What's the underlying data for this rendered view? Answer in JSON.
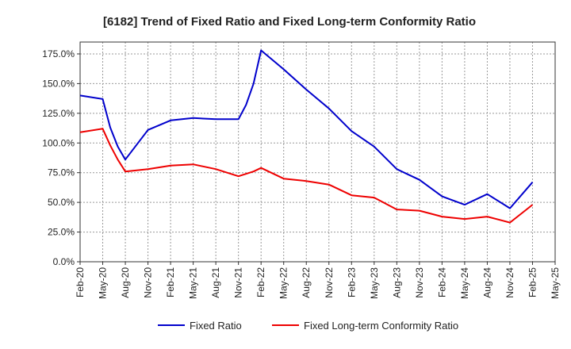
{
  "chart_data": {
    "type": "line",
    "title": "[6182]  Trend of Fixed Ratio and Fixed Long-term Conformity Ratio",
    "xlabel": "",
    "ylabel": "",
    "x_ticks": [
      "Feb-20",
      "May-20",
      "Aug-20",
      "Nov-20",
      "Feb-21",
      "May-21",
      "Aug-21",
      "Nov-21",
      "Feb-22",
      "May-22",
      "Aug-22",
      "Nov-22",
      "Feb-23",
      "May-23",
      "Aug-23",
      "Nov-23",
      "Feb-24",
      "May-24",
      "Aug-24",
      "Nov-24",
      "Feb-25",
      "May-25"
    ],
    "y_ticks": [
      "0.0%",
      "25.0%",
      "50.0%",
      "75.0%",
      "100.0%",
      "125.0%",
      "150.0%",
      "175.0%"
    ],
    "ylim": [
      0,
      185
    ],
    "grid": true,
    "legend_position": "bottom",
    "series": [
      {
        "name": "Fixed Ratio",
        "color": "#0000cc",
        "points": [
          {
            "x": "2020-02",
            "y": 140
          },
          {
            "x": "2020-05",
            "y": 137
          },
          {
            "x": "2020-06",
            "y": 113
          },
          {
            "x": "2020-07",
            "y": 97
          },
          {
            "x": "2020-08",
            "y": 86
          },
          {
            "x": "2020-11",
            "y": 111
          },
          {
            "x": "2021-02",
            "y": 119
          },
          {
            "x": "2021-05",
            "y": 121
          },
          {
            "x": "2021-08",
            "y": 120
          },
          {
            "x": "2021-11",
            "y": 120
          },
          {
            "x": "2021-12",
            "y": 132
          },
          {
            "x": "2022-01",
            "y": 150
          },
          {
            "x": "2022-02",
            "y": 178
          },
          {
            "x": "2022-05",
            "y": 162
          },
          {
            "x": "2022-08",
            "y": 145
          },
          {
            "x": "2022-11",
            "y": 129
          },
          {
            "x": "2023-02",
            "y": 110
          },
          {
            "x": "2023-05",
            "y": 97
          },
          {
            "x": "2023-08",
            "y": 78
          },
          {
            "x": "2023-11",
            "y": 69
          },
          {
            "x": "2024-02",
            "y": 55
          },
          {
            "x": "2024-05",
            "y": 48
          },
          {
            "x": "2024-08",
            "y": 57
          },
          {
            "x": "2024-11",
            "y": 45
          },
          {
            "x": "2025-02",
            "y": 67
          }
        ]
      },
      {
        "name": "Fixed Long-term Conformity Ratio",
        "color": "#ee0000",
        "points": [
          {
            "x": "2020-02",
            "y": 109
          },
          {
            "x": "2020-05",
            "y": 112
          },
          {
            "x": "2020-06",
            "y": 98
          },
          {
            "x": "2020-07",
            "y": 86
          },
          {
            "x": "2020-08",
            "y": 76
          },
          {
            "x": "2020-11",
            "y": 78
          },
          {
            "x": "2021-02",
            "y": 81
          },
          {
            "x": "2021-05",
            "y": 82
          },
          {
            "x": "2021-08",
            "y": 78
          },
          {
            "x": "2021-11",
            "y": 72
          },
          {
            "x": "2021-12",
            "y": 74
          },
          {
            "x": "2022-01",
            "y": 76
          },
          {
            "x": "2022-02",
            "y": 79
          },
          {
            "x": "2022-05",
            "y": 70
          },
          {
            "x": "2022-08",
            "y": 68
          },
          {
            "x": "2022-11",
            "y": 65
          },
          {
            "x": "2023-02",
            "y": 56
          },
          {
            "x": "2023-05",
            "y": 54
          },
          {
            "x": "2023-08",
            "y": 44
          },
          {
            "x": "2023-11",
            "y": 43
          },
          {
            "x": "2024-02",
            "y": 38
          },
          {
            "x": "2024-05",
            "y": 36
          },
          {
            "x": "2024-08",
            "y": 38
          },
          {
            "x": "2024-11",
            "y": 33
          },
          {
            "x": "2025-02",
            "y": 48
          }
        ]
      }
    ]
  }
}
